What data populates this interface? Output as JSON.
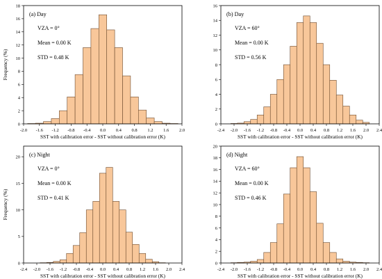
{
  "chart_data": [
    {
      "type": "bar",
      "panel_label": "(a) Day",
      "annotations": [
        "VZA = 0°",
        "Mean = 0.00 K",
        "STD = 0.48 K"
      ],
      "xlabel": "SST with calibration error - SST without calibration error (K)",
      "ylabel": "Frequency (%)",
      "xlim": [
        -2.0,
        2.0
      ],
      "ylim": [
        0,
        18
      ],
      "xticks": [
        -2.0,
        -1.6,
        -1.2,
        -0.8,
        -0.4,
        0.0,
        0.4,
        0.8,
        1.2,
        1.6,
        2.0
      ],
      "xtick_labels": [
        "-2.0",
        "-1.6",
        "-1.2",
        "-0.8",
        "-0.4",
        "0.0",
        "0.4",
        "0.8",
        "1.2",
        "1.6",
        "2.0"
      ],
      "yticks": [
        0,
        2,
        4,
        6,
        8,
        10,
        12,
        14,
        16,
        18
      ],
      "ytick_labels": [
        "0",
        "2",
        "4",
        "6",
        "8",
        "10",
        "12",
        "14",
        "16",
        "18"
      ],
      "bin_width": 0.2,
      "bin_centers": [
        -1.8,
        -1.6,
        -1.4,
        -1.2,
        -1.0,
        -0.8,
        -0.6,
        -0.4,
        -0.2,
        0.0,
        0.2,
        0.4,
        0.6,
        0.8,
        1.0,
        1.2,
        1.4,
        1.6,
        1.8
      ],
      "values": [
        0.05,
        0.1,
        0.35,
        0.8,
        2.0,
        4.1,
        7.5,
        11.6,
        14.5,
        16.6,
        14.3,
        11.6,
        7.3,
        4.1,
        2.1,
        0.9,
        0.35,
        0.1,
        0.05
      ]
    },
    {
      "type": "bar",
      "panel_label": "(b) Day",
      "annotations": [
        "VZA = 60°",
        "Mean = 0.00 K",
        "STD = 0.56 K"
      ],
      "xlabel": "SST with calibration error - SST without calibration error (K)",
      "ylabel": "",
      "xlim": [
        -2.4,
        2.4
      ],
      "ylim": [
        0,
        16
      ],
      "xticks": [
        -2.4,
        -2.0,
        -1.6,
        -1.2,
        -0.8,
        -0.4,
        0.0,
        0.4,
        0.8,
        1.2,
        1.6,
        2.0,
        2.4
      ],
      "xtick_labels": [
        "-2.4",
        "-2.0",
        "-1.6",
        "-1.2",
        "-0.8",
        "-0.4",
        "0.0",
        "0.4",
        "0.8",
        "1.2",
        "1.6",
        "2.0",
        "2.4"
      ],
      "yticks": [
        0,
        2,
        4,
        6,
        8,
        10,
        12,
        14,
        16
      ],
      "ytick_labels": [
        "0",
        "2",
        "4",
        "6",
        "8",
        "10",
        "12",
        "14",
        "16"
      ],
      "bin_width": 0.2,
      "bin_centers": [
        -2.0,
        -1.8,
        -1.6,
        -1.4,
        -1.2,
        -1.0,
        -0.8,
        -0.6,
        -0.4,
        -0.2,
        0.0,
        0.2,
        0.4,
        0.6,
        0.8,
        1.0,
        1.2,
        1.4,
        1.6,
        1.8,
        2.0
      ],
      "values": [
        0.05,
        0.1,
        0.3,
        0.6,
        1.2,
        2.3,
        4.0,
        6.0,
        8.0,
        10.5,
        13.7,
        14.6,
        13.7,
        10.9,
        8.0,
        5.9,
        3.9,
        2.4,
        1.2,
        0.5,
        0.2
      ]
    },
    {
      "type": "bar",
      "panel_label": "(c) Night",
      "annotations": [
        "VZA = 0°",
        "Mean = 0.00 K",
        "STD = 0.41 K"
      ],
      "xlabel": "SST with calibration error - SST without calibration error (K)",
      "ylabel": "Frequency (%)",
      "xlim": [
        -2.4,
        2.4
      ],
      "ylim": [
        0,
        22
      ],
      "xticks": [
        -2.4,
        -2.0,
        -1.6,
        -1.2,
        -0.8,
        -0.4,
        0.0,
        0.4,
        0.8,
        1.2,
        1.6,
        2.0,
        2.4
      ],
      "xtick_labels": [
        "-2.4",
        "-2.0",
        "-1.6",
        "-1.2",
        "-0.8",
        "-0.4",
        "0.0",
        "0.4",
        "0.8",
        "1.2",
        "1.6",
        "2.0",
        "2.4"
      ],
      "yticks": [
        0,
        5,
        10,
        15,
        20
      ],
      "ytick_labels": [
        "0",
        "5",
        "10",
        "15",
        "20"
      ],
      "bin_width": 0.2,
      "bin_centers": [
        -1.8,
        -1.6,
        -1.4,
        -1.2,
        -1.0,
        -0.8,
        -0.6,
        -0.4,
        -0.2,
        0.0,
        0.2,
        0.4,
        0.6,
        0.8,
        1.0,
        1.2,
        1.4,
        1.6,
        1.8
      ],
      "values": [
        0.05,
        0.1,
        0.3,
        0.6,
        1.8,
        3.3,
        5.7,
        10.0,
        11.6,
        16.9,
        18.0,
        11.6,
        10.0,
        5.8,
        3.5,
        1.8,
        0.7,
        0.25,
        0.05
      ]
    },
    {
      "type": "bar",
      "panel_label": "(d) Night",
      "annotations": [
        "VZA = 60°",
        "Mean = 0.00 K",
        "STD = 0.46 K"
      ],
      "xlabel": "SST with calibration error - SST without calibration error (K)",
      "ylabel": "",
      "xlim": [
        -2.4,
        2.4
      ],
      "ylim": [
        0,
        20
      ],
      "xticks": [
        -2.4,
        -2.0,
        -1.6,
        -1.2,
        -0.8,
        -0.4,
        0.0,
        0.4,
        0.8,
        1.2,
        1.6,
        2.0,
        2.4
      ],
      "xtick_labels": [
        "-2.4",
        "-2.0",
        "-1.6",
        "-1.2",
        "-0.8",
        "-0.4",
        "0.0",
        "0.4",
        "0.8",
        "1.2",
        "1.6",
        "2.0",
        "2.4"
      ],
      "yticks": [
        0,
        2,
        4,
        6,
        8,
        10,
        12,
        14,
        16,
        18,
        20
      ],
      "ytick_labels": [
        "0",
        "2",
        "4",
        "6",
        "8",
        "10",
        "12",
        "14",
        "16",
        "18",
        "20"
      ],
      "bin_width": 0.2,
      "bin_centers": [
        -2.0,
        -1.8,
        -1.6,
        -1.4,
        -1.2,
        -1.0,
        -0.8,
        -0.6,
        -0.4,
        -0.2,
        0.0,
        0.2,
        0.4,
        0.6,
        0.8,
        1.0,
        1.2,
        1.4,
        1.6,
        1.8,
        2.0
      ],
      "values": [
        0.05,
        0.1,
        0.15,
        0.3,
        0.6,
        1.8,
        3.5,
        6.7,
        11.8,
        16.3,
        18.2,
        16.3,
        12.2,
        6.8,
        3.5,
        1.8,
        0.7,
        0.3,
        0.15,
        0.1,
        0.05
      ]
    }
  ]
}
